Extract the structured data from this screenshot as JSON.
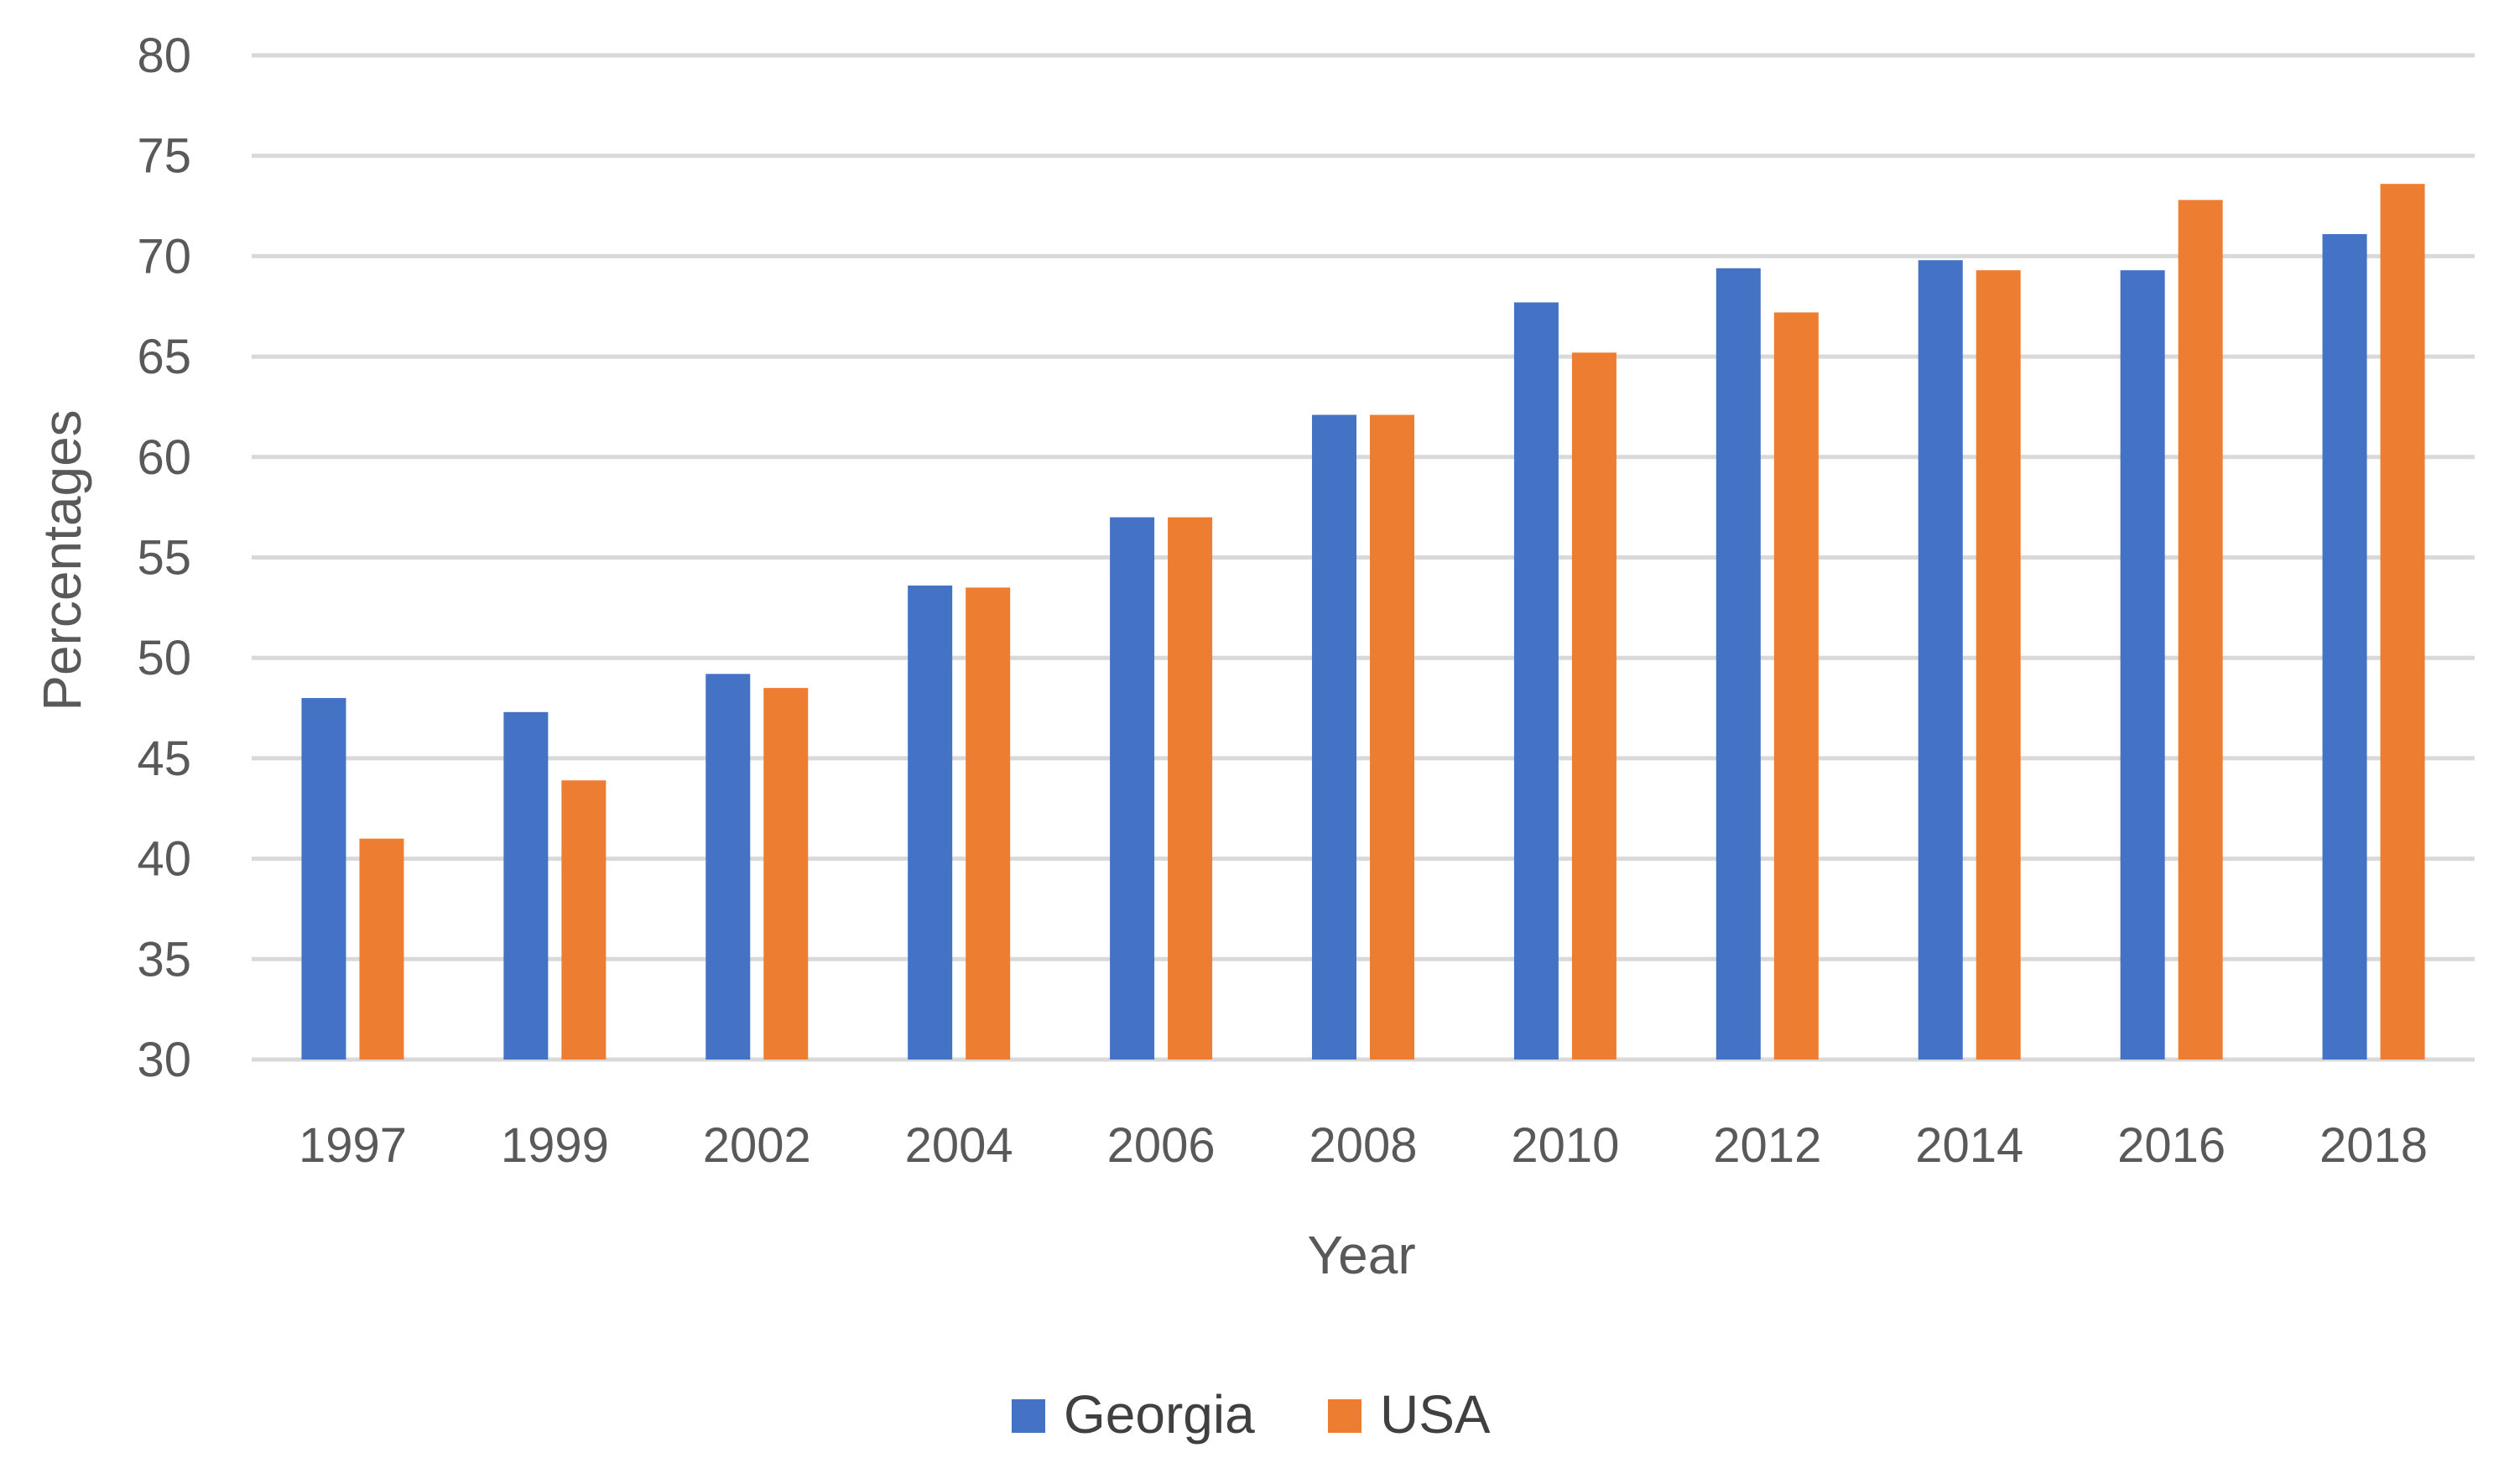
{
  "chart_data": {
    "type": "bar",
    "title": "",
    "xlabel": "Year",
    "ylabel": "Percentages",
    "ylim": [
      30,
      80
    ],
    "ytick_step": 5,
    "yticks": [
      "30",
      "35",
      "40",
      "45",
      "50",
      "55",
      "60",
      "65",
      "70",
      "75",
      "80"
    ],
    "grid": true,
    "legend_position": "bottom",
    "categories": [
      "1997",
      "1999",
      "2002",
      "2004",
      "2006",
      "2008",
      "2010",
      "2012",
      "2014",
      "2016",
      "2018"
    ],
    "series": [
      {
        "name": "Georgia",
        "color": "#4472C4",
        "values": [
          48.0,
          47.3,
          49.2,
          53.6,
          57.0,
          62.1,
          67.7,
          69.4,
          69.8,
          69.3,
          71.1
        ]
      },
      {
        "name": "USA",
        "color": "#ED7D31",
        "values": [
          41.0,
          43.9,
          48.5,
          53.5,
          57.0,
          62.1,
          65.2,
          67.2,
          69.3,
          72.8,
          73.6
        ]
      }
    ]
  },
  "colors": {
    "gridline": "#D9D9D9",
    "text": "#595959",
    "background": "#FFFFFF"
  }
}
